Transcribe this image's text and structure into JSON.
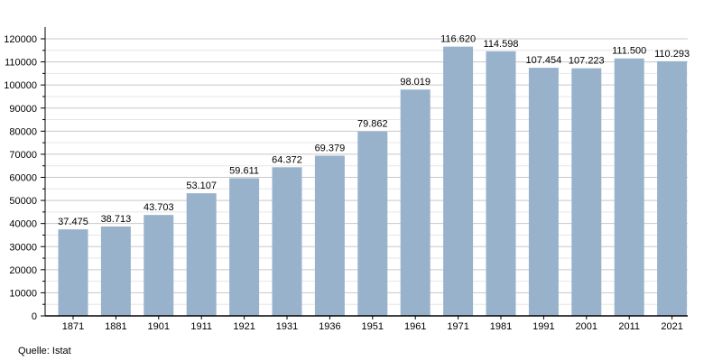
{
  "chart_data": {
    "type": "bar",
    "title": "",
    "xlabel": "",
    "ylabel": "",
    "categories": [
      "1871",
      "1881",
      "1901",
      "1911",
      "1921",
      "1931",
      "1936",
      "1951",
      "1961",
      "1971",
      "1981",
      "1991",
      "2001",
      "2011",
      "2021"
    ],
    "values": [
      37475,
      38713,
      43703,
      53107,
      59611,
      64372,
      69379,
      79862,
      98019,
      116620,
      114598,
      107454,
      107223,
      111500,
      110293
    ],
    "data_labels": [
      "37.475",
      "38.713",
      "43.703",
      "53.107",
      "59.611",
      "64.372",
      "69.379",
      "79.862",
      "98.019",
      "116.620",
      "114.598",
      "107.454",
      "107.223",
      "111.500",
      "110.293"
    ],
    "ylim": [
      0,
      120000
    ],
    "yticks": [
      0,
      10000,
      20000,
      30000,
      40000,
      50000,
      60000,
      70000,
      80000,
      90000,
      100000,
      110000,
      120000
    ],
    "grid": true,
    "bar_color": "#98b2cc"
  },
  "source": "Quelle: Istat"
}
